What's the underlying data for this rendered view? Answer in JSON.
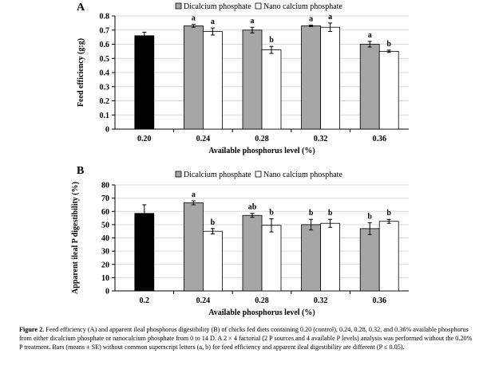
{
  "colors": {
    "control": "#000000",
    "dicalcium": "#a6a6a6",
    "nano": "#ffffff",
    "gridline": "#d9d9d9"
  },
  "chart_data": [
    {
      "panel_label": "A",
      "type": "bar",
      "legend": [
        "Dicalcium phosphate",
        "Nano calcium phosphate"
      ],
      "xlabel": "Available phosphorus level (%)",
      "ylabel": "Feed efficiency (g:g)",
      "ylim": [
        0,
        0.8
      ],
      "yticks": [
        "0",
        "0.1",
        "0.2",
        "0.3",
        "0.4",
        "0.5",
        "0.6",
        "0.7",
        "0.8"
      ],
      "categories": [
        "0.20",
        "0.24",
        "0.28",
        "0.32",
        "0.36"
      ],
      "series": [
        {
          "name": "Control",
          "values": [
            0.66,
            null,
            null,
            null,
            null
          ],
          "errors": [
            0.025,
            null,
            null,
            null,
            null
          ],
          "labels": [
            "",
            "",
            "",
            "",
            ""
          ]
        },
        {
          "name": "Dicalcium phosphate",
          "values": [
            null,
            0.73,
            0.7,
            0.73,
            0.6
          ],
          "errors": [
            null,
            0.01,
            0.02,
            0.005,
            0.02
          ],
          "labels": [
            "",
            "a",
            "a",
            "a",
            "a"
          ]
        },
        {
          "name": "Nano calcium phosphate",
          "values": [
            null,
            0.69,
            0.56,
            0.72,
            0.55
          ],
          "errors": [
            null,
            0.025,
            0.025,
            0.03,
            0.008
          ],
          "labels": [
            "",
            "a",
            "b",
            "a",
            "b"
          ]
        }
      ]
    },
    {
      "panel_label": "B",
      "type": "bar",
      "legend": [
        "Dicalcium phosphate",
        "Nano calcium phosphate"
      ],
      "xlabel": "Available phosphorus level (%)",
      "ylabel": "Apparent ileal P digestibility (%)",
      "ylim": [
        0,
        80
      ],
      "yticks": [
        "0",
        "10",
        "20",
        "30",
        "40",
        "50",
        "60",
        "70",
        "80"
      ],
      "categories": [
        "0.2",
        "0.24",
        "0.28",
        "0.32",
        "0.36"
      ],
      "series": [
        {
          "name": "Control",
          "values": [
            58.5,
            null,
            null,
            null,
            null
          ],
          "errors": [
            6.5,
            null,
            null,
            null,
            null
          ],
          "labels": [
            "",
            "",
            "",
            "",
            ""
          ]
        },
        {
          "name": "Dicalcium phosphate",
          "values": [
            null,
            66.5,
            57,
            50,
            47
          ],
          "errors": [
            null,
            1.5,
            1.5,
            4,
            4.5
          ],
          "labels": [
            "",
            "a",
            "ab",
            "b",
            "b"
          ]
        },
        {
          "name": "Nano calcium phosphate",
          "values": [
            null,
            45,
            49.5,
            51,
            52.5
          ],
          "errors": [
            null,
            2,
            5,
            3,
            1.5
          ],
          "labels": [
            "",
            "b",
            "b",
            "b",
            "b"
          ]
        }
      ]
    }
  ],
  "caption": {
    "label": "Figure 2.",
    "text": "Feed efficiency (A) and apparent ileal phosphorus digestibility (B) of chicks fed diets containing 0.20 (control), 0.24, 0.28, 0.32, and 0.36% available phosphorus from either dicalcium phosphate or nanocalcium phosphate from 0 to 14 D. A 2 × 4 factorial (2 P sources and 4 available P levels) analysis was performed without the 0.20% P treatment. Bars (means ± SE) without common superscript letters (a, b) for feed efficiency and apparent ileal digestibility are different (P ≤ 0.05)."
  }
}
